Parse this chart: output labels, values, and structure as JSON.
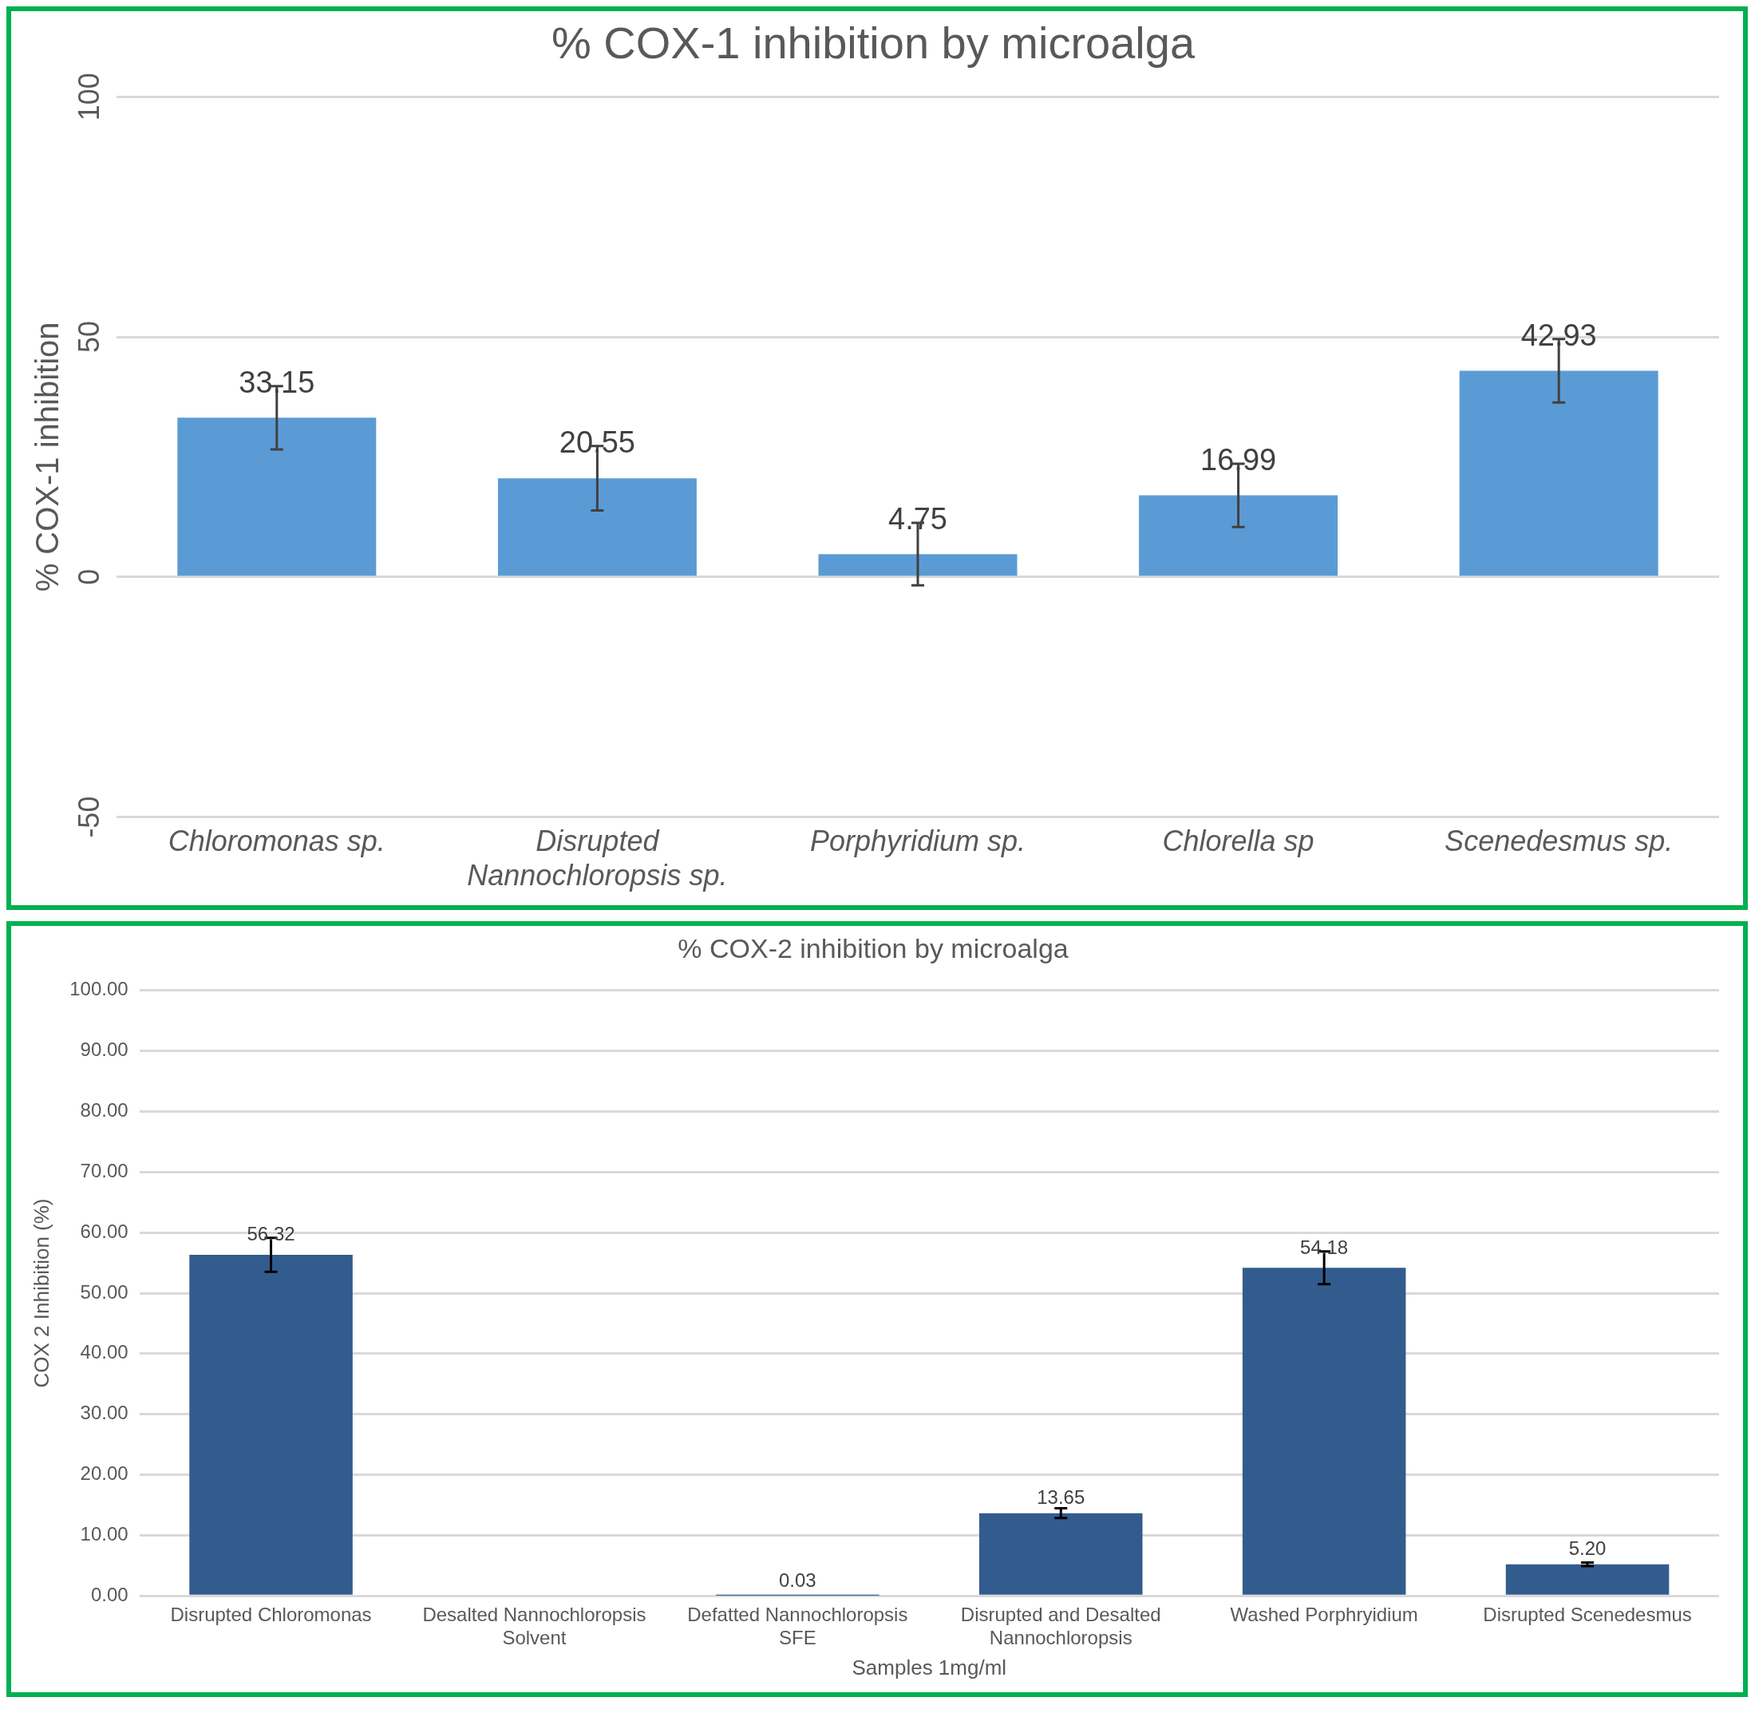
{
  "chart_data": [
    {
      "type": "bar",
      "title": "% COX-1 inhibition by microalga",
      "ylabel": "% COX-1 inhibition",
      "categories": [
        "Chloromonas sp.",
        "Disrupted Nannochloropsis sp.",
        "Porphyridium sp.",
        "Chlorella sp",
        "Scenedesmus sp."
      ],
      "series": [
        {
          "color": "#5b9bd5",
          "values": [
            33.15,
            20.55,
            4.75,
            16.99,
            42.93
          ],
          "errors": [
            6.6,
            6.7,
            6.5,
            6.6,
            6.6
          ]
        }
      ],
      "ylim": [
        -50,
        100
      ],
      "yticks": [
        -50,
        0,
        50,
        100
      ],
      "grid": "y",
      "legend": false,
      "data_labels": true
    },
    {
      "type": "bar",
      "title": "% COX-2 inhibition by microalga",
      "xlabel": "Samples 1mg/ml",
      "ylabel": "COX 2 Inhibition (%)",
      "categories": [
        "Disrupted Chloromonas",
        "Desalted Nannochloropsis Solvent",
        "Defatted Nannochloropsis SFE",
        "Disrupted and Desalted Nannochloropsis",
        "Washed Porphryidium",
        "Disrupted Scenedesmus"
      ],
      "series": [
        {
          "color": "#335c8e",
          "values": [
            56.32,
            null,
            0.03,
            13.65,
            54.18,
            5.2
          ],
          "errors": [
            2.8,
            null,
            null,
            0.8,
            2.7,
            0.3
          ],
          "value_labels": [
            "56.32",
            null,
            "0.03",
            "13.65",
            "54.18",
            "5.20"
          ]
        }
      ],
      "ylim": [
        0,
        100
      ],
      "yticks": [
        {
          "value": 0,
          "label": "0.00"
        },
        {
          "value": 10,
          "label": "10.00"
        },
        {
          "value": 20,
          "label": "20.00"
        },
        {
          "value": 30,
          "label": "30.00"
        },
        {
          "value": 40,
          "label": "40.00"
        },
        {
          "value": 50,
          "label": "50.00"
        },
        {
          "value": 60,
          "label": "60.00"
        },
        {
          "value": 70,
          "label": "70.00"
        },
        {
          "value": 80,
          "label": "80.00"
        },
        {
          "value": 90,
          "label": "90.00"
        },
        {
          "value": 100,
          "label": "100.00"
        }
      ],
      "grid": "y",
      "legend": false
    }
  ]
}
